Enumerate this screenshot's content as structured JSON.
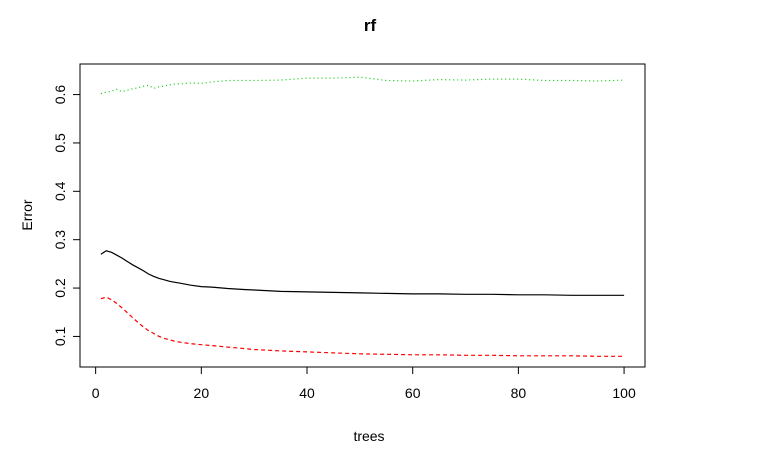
{
  "chart_data": {
    "type": "line",
    "title": "rf",
    "xlabel": "trees",
    "ylabel": "Error",
    "xlim": [
      1,
      100
    ],
    "ylim": [
      0.06,
      0.64
    ],
    "xticks": [
      0,
      20,
      40,
      60,
      80,
      100
    ],
    "yticks": [
      0.1,
      0.2,
      0.3,
      0.4,
      0.5,
      0.6
    ],
    "xtick_labels": [
      "0",
      "20",
      "40",
      "60",
      "80",
      "100"
    ],
    "ytick_labels": [
      "0.1",
      "0.2",
      "0.3",
      "0.4",
      "0.5",
      "0.6"
    ],
    "legend": false,
    "grid": false,
    "x": [
      1,
      2,
      3,
      4,
      5,
      6,
      7,
      8,
      9,
      10,
      11,
      12,
      13,
      14,
      15,
      16,
      18,
      20,
      22,
      25,
      28,
      30,
      35,
      40,
      45,
      50,
      55,
      60,
      65,
      70,
      75,
      80,
      85,
      90,
      95,
      100
    ],
    "series": [
      {
        "color": "#000000",
        "dash": "solid",
        "values": [
          0.27,
          0.277,
          0.274,
          0.268,
          0.262,
          0.255,
          0.248,
          0.242,
          0.236,
          0.229,
          0.224,
          0.22,
          0.217,
          0.214,
          0.212,
          0.21,
          0.206,
          0.203,
          0.202,
          0.199,
          0.197,
          0.196,
          0.193,
          0.192,
          0.191,
          0.19,
          0.189,
          0.188,
          0.188,
          0.187,
          0.187,
          0.186,
          0.186,
          0.185,
          0.185,
          0.185
        ]
      },
      {
        "color": "#ff0000",
        "dash": "dashed",
        "values": [
          0.178,
          0.181,
          0.176,
          0.168,
          0.159,
          0.149,
          0.139,
          0.129,
          0.12,
          0.112,
          0.106,
          0.1,
          0.096,
          0.093,
          0.09,
          0.088,
          0.085,
          0.083,
          0.081,
          0.078,
          0.075,
          0.073,
          0.07,
          0.068,
          0.066,
          0.064,
          0.063,
          0.062,
          0.062,
          0.061,
          0.061,
          0.06,
          0.06,
          0.06,
          0.059,
          0.059
        ]
      },
      {
        "color": "#00cd00",
        "dash": "dotted",
        "values": [
          0.602,
          0.605,
          0.607,
          0.611,
          0.606,
          0.609,
          0.612,
          0.614,
          0.617,
          0.619,
          0.613,
          0.616,
          0.618,
          0.62,
          0.622,
          0.622,
          0.624,
          0.623,
          0.626,
          0.629,
          0.629,
          0.629,
          0.63,
          0.634,
          0.634,
          0.636,
          0.629,
          0.628,
          0.631,
          0.63,
          0.632,
          0.632,
          0.629,
          0.629,
          0.628,
          0.63
        ]
      }
    ]
  }
}
